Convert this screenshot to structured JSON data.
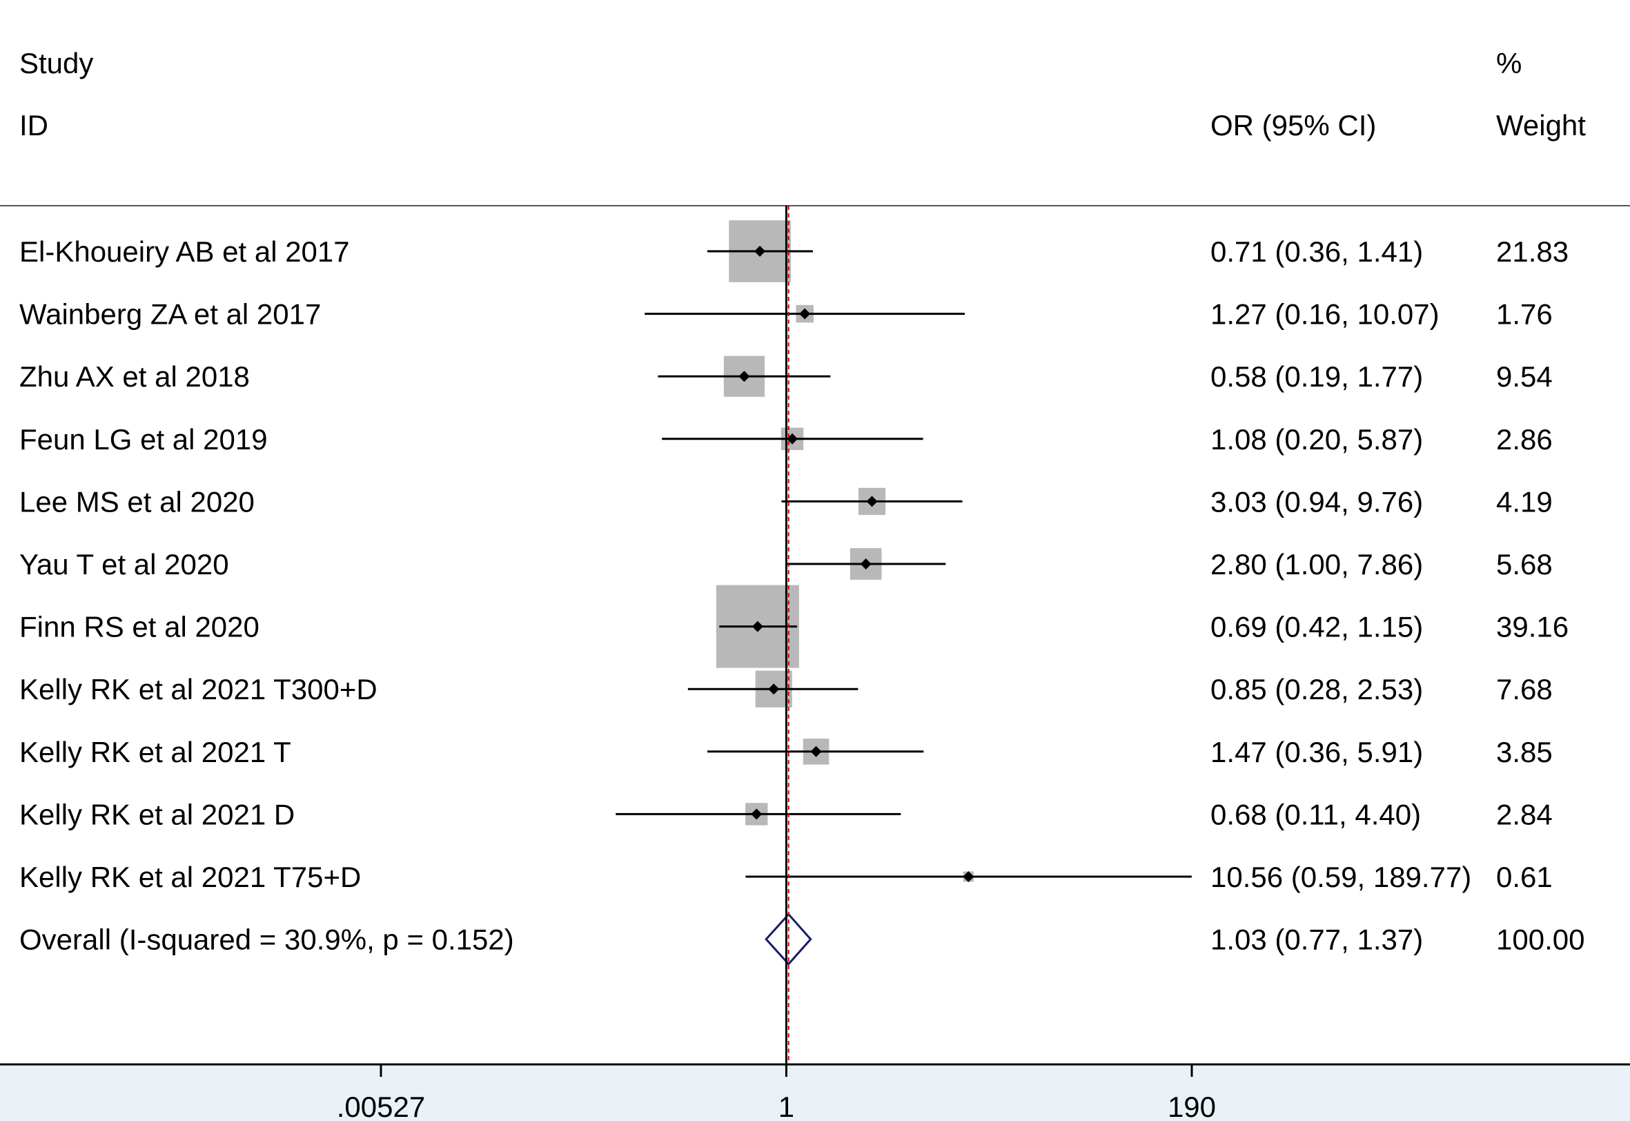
{
  "chart_data": {
    "type": "forest",
    "headers": {
      "study_line1": "Study",
      "study_line2": "ID",
      "ci_header": "OR (95% CI)",
      "weight_line1": "%",
      "weight_line2": "Weight"
    },
    "x_scale": "log",
    "xlim": [
      0.00527,
      190
    ],
    "x_ticks": [
      {
        "value": 0.00527,
        "label": ".00527"
      },
      {
        "value": 1,
        "label": "1"
      },
      {
        "value": 190,
        "label": "190"
      }
    ],
    "null_line": 1,
    "pooled_line": 1.03,
    "studies": [
      {
        "label": "El-Khoueiry AB et al 2017",
        "or": 0.71,
        "lower": 0.36,
        "upper": 1.41,
        "ci_text": "0.71 (0.36, 1.41)",
        "weight": 21.83,
        "weight_text": "21.83"
      },
      {
        "label": "Wainberg ZA et al 2017",
        "or": 1.27,
        "lower": 0.16,
        "upper": 10.07,
        "ci_text": "1.27 (0.16, 10.07)",
        "weight": 1.76,
        "weight_text": "1.76"
      },
      {
        "label": "Zhu AX et al 2018",
        "or": 0.58,
        "lower": 0.19,
        "upper": 1.77,
        "ci_text": "0.58 (0.19, 1.77)",
        "weight": 9.54,
        "weight_text": "9.54"
      },
      {
        "label": "Feun LG et al 2019",
        "or": 1.08,
        "lower": 0.2,
        "upper": 5.87,
        "ci_text": "1.08 (0.20, 5.87)",
        "weight": 2.86,
        "weight_text": "2.86"
      },
      {
        "label": "Lee MS et al 2020",
        "or": 3.03,
        "lower": 0.94,
        "upper": 9.76,
        "ci_text": "3.03 (0.94, 9.76)",
        "weight": 4.19,
        "weight_text": "4.19"
      },
      {
        "label": "Yau T et al 2020",
        "or": 2.8,
        "lower": 1.0,
        "upper": 7.86,
        "ci_text": "2.80 (1.00, 7.86)",
        "weight": 5.68,
        "weight_text": "5.68"
      },
      {
        "label": "Finn RS et al 2020",
        "or": 0.69,
        "lower": 0.42,
        "upper": 1.15,
        "ci_text": "0.69 (0.42, 1.15)",
        "weight": 39.16,
        "weight_text": "39.16"
      },
      {
        "label": "Kelly RK et al 2021 T300+D",
        "or": 0.85,
        "lower": 0.28,
        "upper": 2.53,
        "ci_text": "0.85 (0.28, 2.53)",
        "weight": 7.68,
        "weight_text": "7.68"
      },
      {
        "label": "Kelly RK et al 2021 T",
        "or": 1.47,
        "lower": 0.36,
        "upper": 5.91,
        "ci_text": "1.47 (0.36, 5.91)",
        "weight": 3.85,
        "weight_text": "3.85"
      },
      {
        "label": "Kelly RK et al 2021 D",
        "or": 0.68,
        "lower": 0.11,
        "upper": 4.4,
        "ci_text": "0.68 (0.11, 4.40)",
        "weight": 2.84,
        "weight_text": "2.84"
      },
      {
        "label": "Kelly RK et al 2021 T75+D",
        "or": 10.56,
        "lower": 0.59,
        "upper": 189.77,
        "ci_text": "10.56 (0.59, 189.77)",
        "weight": 0.61,
        "weight_text": "0.61"
      }
    ],
    "overall": {
      "label": "Overall  (I-squared = 30.9%, p = 0.152)",
      "or": 1.03,
      "lower": 0.77,
      "upper": 1.37,
      "ci_text": "1.03 (0.77, 1.37)",
      "weight": 100.0,
      "weight_text": "100.00"
    },
    "colors": {
      "box": "#b8b8b8",
      "ci_line": "#000000",
      "point": "#000000",
      "null_line": "#000000",
      "pooled_line": "#c00000",
      "diamond": "#1a1a6e",
      "axis_band": "#eaf2f7"
    }
  }
}
